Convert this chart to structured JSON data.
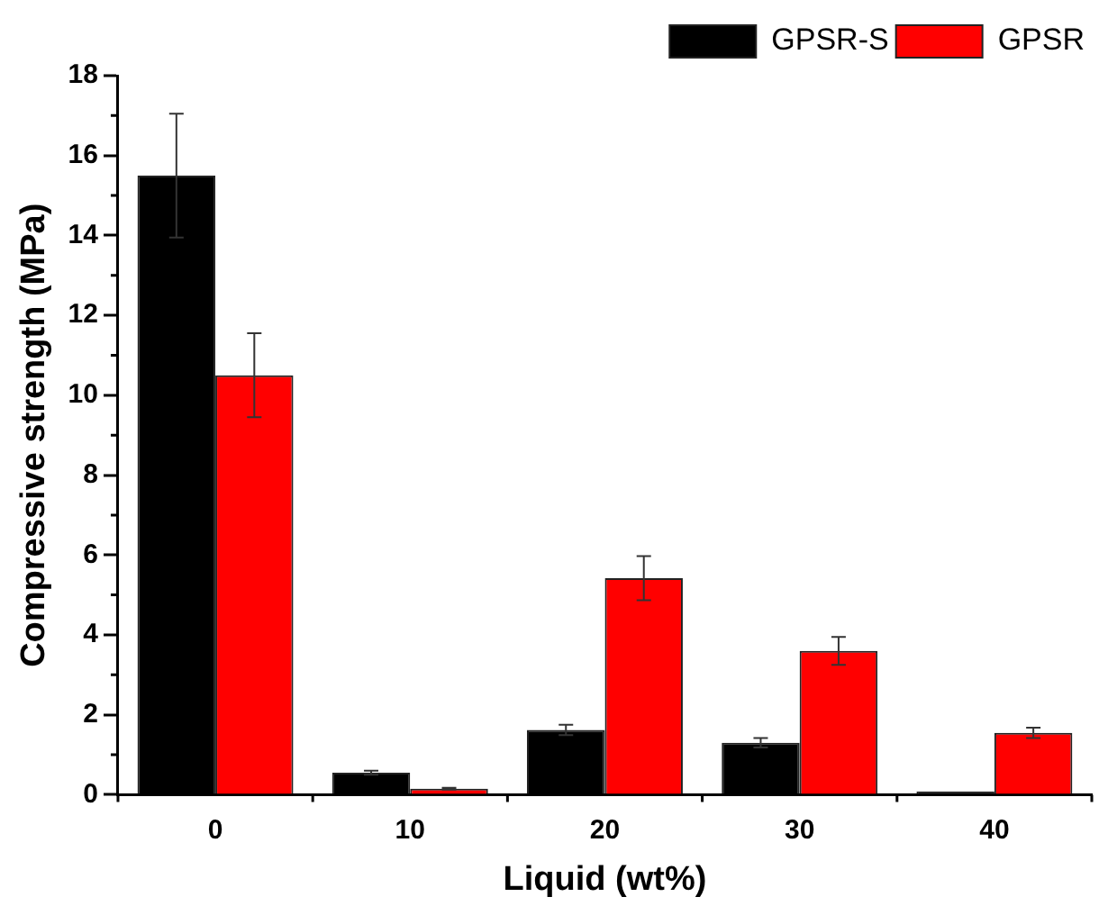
{
  "chart_data": {
    "type": "bar",
    "xlabel": "Liquid (wt%)",
    "ylabel": "Compressive strength (MPa)",
    "categories": [
      "0",
      "10",
      "20",
      "30",
      "40"
    ],
    "series": [
      {
        "name": "GPSR-S",
        "color": "#000000",
        "values": [
          15.5,
          0.55,
          1.62,
          1.3,
          0.08
        ],
        "errors": [
          1.55,
          0.05,
          0.13,
          0.12,
          null
        ]
      },
      {
        "name": "GPSR",
        "color": "#ff0000",
        "values": [
          10.5,
          0.15,
          5.42,
          3.6,
          1.55
        ],
        "errors": [
          1.05,
          0.02,
          0.55,
          0.35,
          0.13
        ]
      }
    ],
    "ylim": [
      0,
      18
    ],
    "yticks": [
      0,
      2,
      4,
      6,
      8,
      10,
      12,
      14,
      16,
      18
    ],
    "grid": false,
    "legend": "top right"
  }
}
